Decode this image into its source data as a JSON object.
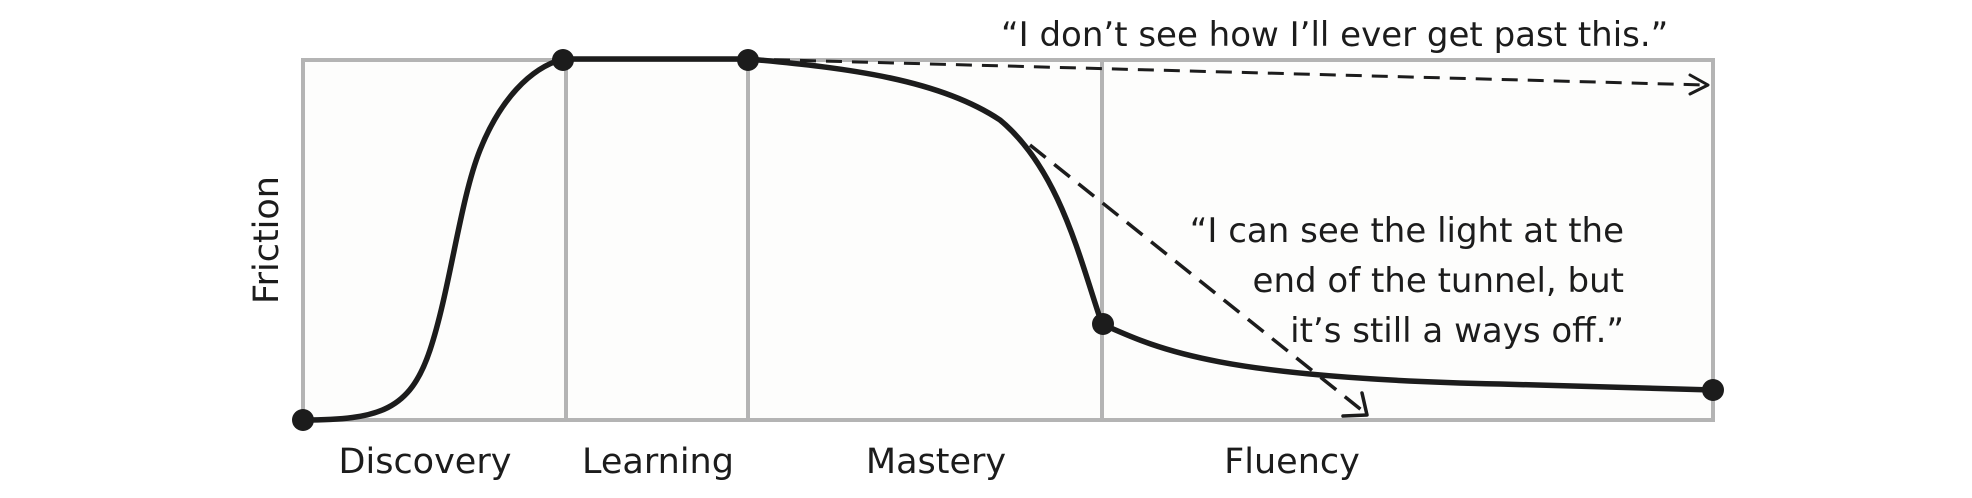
{
  "diagram": {
    "y_axis_label": "Friction",
    "phases": [
      {
        "label": "Discovery"
      },
      {
        "label": "Learning"
      },
      {
        "label": "Mastery"
      },
      {
        "label": "Fluency"
      }
    ],
    "quotes": {
      "stuck": "“I don’t see how I’ll ever get past this.”",
      "hopeful": [
        "“I can see the light at the",
        "end of the tunnel, but",
        "it’s still a ways off.”"
      ]
    },
    "colors": {
      "line": "#1c1c1c",
      "frame": "#b4b4b4",
      "plot_background": "#fdfdfc"
    }
  }
}
